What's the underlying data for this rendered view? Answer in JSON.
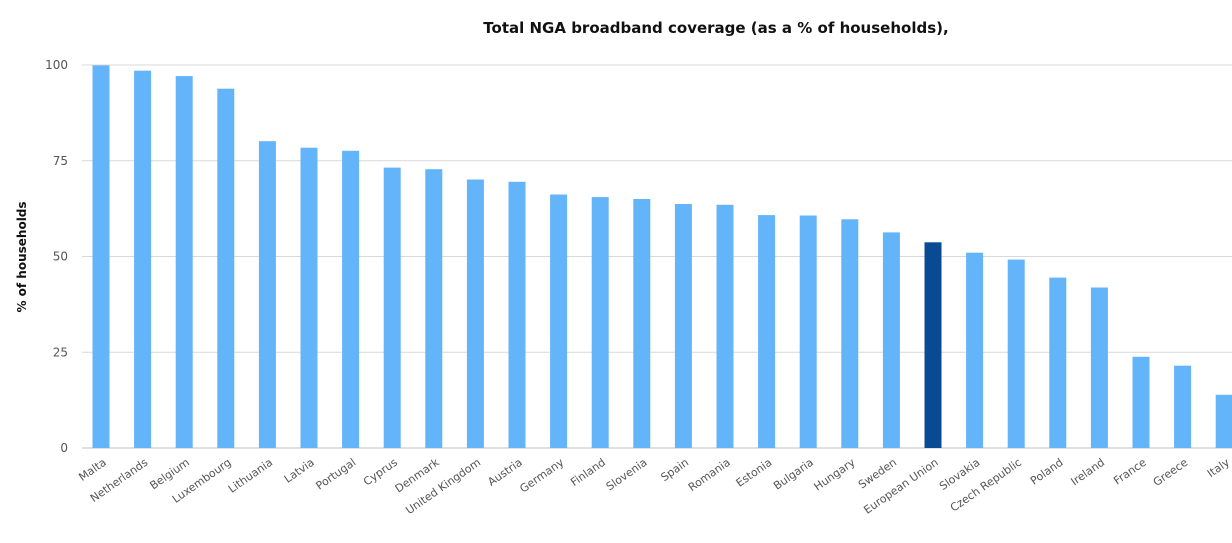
{
  "chart_data": {
    "type": "bar",
    "title": "Total NGA broadband coverage (as a % of households),",
    "xlabel": "",
    "ylabel": "% of households",
    "ylim": [
      0,
      100
    ],
    "yticks": [
      "0",
      "25",
      "50",
      "75",
      "100"
    ],
    "grid": true,
    "legend": "none",
    "bar_color": "#63b4f9",
    "highlight_color": "#0a4a93",
    "highlight_category": "European Union",
    "categories": [
      "Malta",
      "Netherlands",
      "Belgium",
      "Luxembourg",
      "Lithuania",
      "Latvia",
      "Portugal",
      "Cyprus",
      "Denmark",
      "United Kingdom",
      "Austria",
      "Germany",
      "Finland",
      "Slovenia",
      "Spain",
      "Romania",
      "Estonia",
      "Bulgaria",
      "Hungary",
      "Sweden",
      "European Union",
      "Slovakia",
      "Czech Republic",
      "Poland",
      "Ireland",
      "France",
      "Greece",
      "Italy"
    ],
    "values": [
      99.9,
      98.5,
      97.1,
      93.8,
      80.1,
      78.4,
      77.6,
      73.2,
      72.8,
      70.1,
      69.5,
      66.2,
      65.5,
      65.0,
      63.7,
      63.5,
      60.8,
      60.7,
      59.7,
      56.3,
      53.7,
      51.0,
      49.2,
      44.5,
      41.9,
      23.8,
      21.5,
      13.9
    ]
  }
}
